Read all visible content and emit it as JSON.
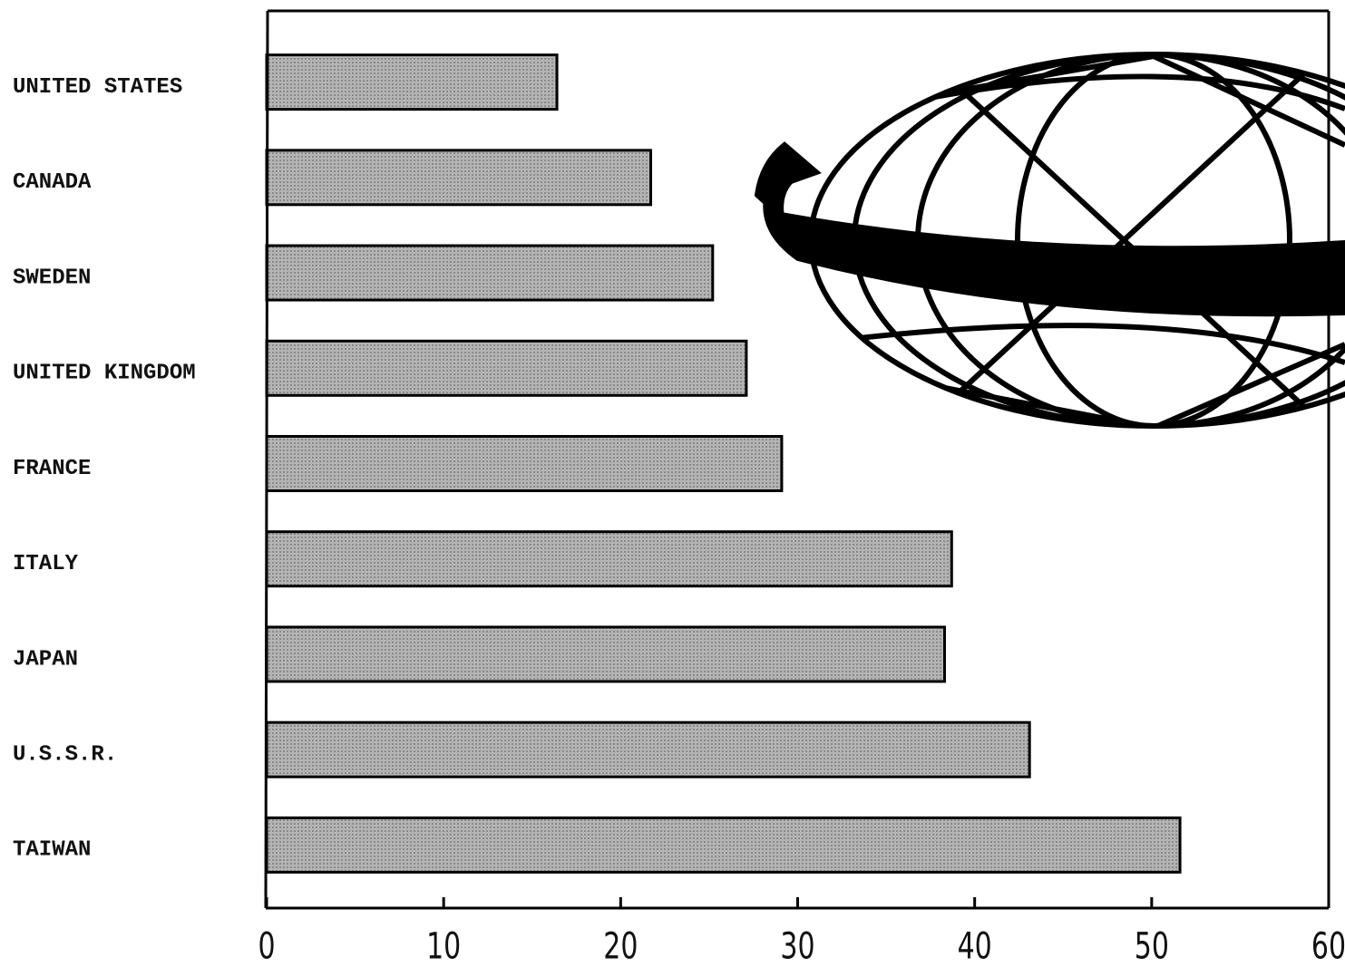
{
  "chart_data": {
    "type": "bar",
    "orientation": "horizontal",
    "categories": [
      "UNITED STATES",
      "CANADA",
      "SWEDEN",
      "UNITED KINGDOM",
      "FRANCE",
      "ITALY",
      "JAPAN",
      "U.S.S.R.",
      "TAIWAN"
    ],
    "values": [
      16.4,
      21.7,
      25.2,
      27.1,
      29.1,
      38.7,
      38.3,
      43.1,
      51.6
    ],
    "color": "#b4b4b4",
    "xlim": [
      0,
      60
    ],
    "xticks": [
      0,
      10,
      20,
      30,
      40,
      50,
      60
    ]
  }
}
